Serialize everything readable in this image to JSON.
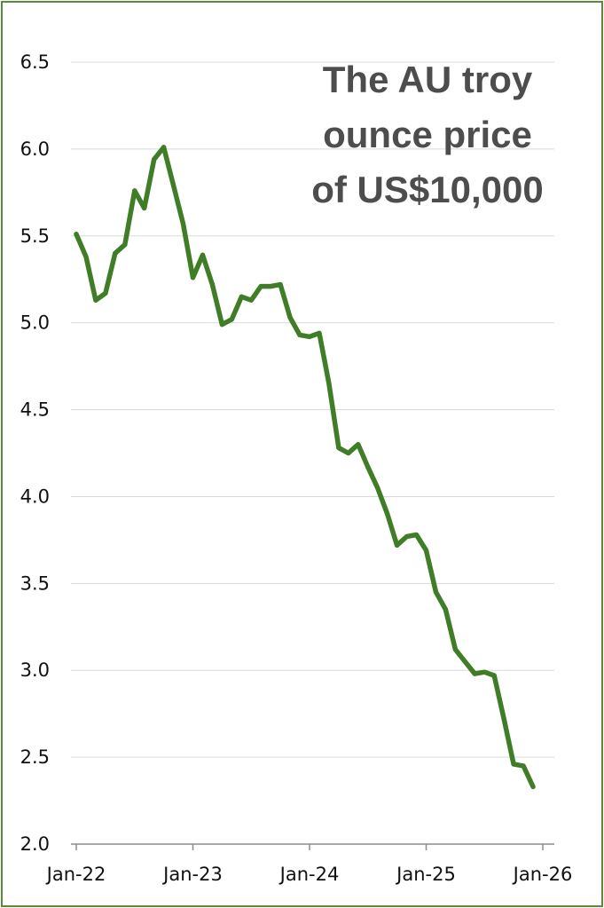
{
  "chart_data": {
    "type": "line",
    "title_lines": [
      "The AU troy",
      "ounce price",
      "of US$10,000"
    ],
    "xlabel": "",
    "ylabel": "",
    "ylim": [
      2.0,
      6.5
    ],
    "y_ticks": [
      "2.0",
      "2.5",
      "3.0",
      "3.5",
      "4.0",
      "4.5",
      "5.0",
      "5.5",
      "6.0",
      "6.5"
    ],
    "x_ticks": [
      {
        "label": "Jan-22",
        "month": 0
      },
      {
        "label": "Jan-23",
        "month": 12
      },
      {
        "label": "Jan-24",
        "month": 24
      },
      {
        "label": "Jan-25",
        "month": 36
      },
      {
        "label": "Jan-26",
        "month": 48
      }
    ],
    "grid": true,
    "legend": "none",
    "series_color": "#3f7d26",
    "series": [
      {
        "x": [
          "Jan-22",
          "Feb-22",
          "Mar-22",
          "Apr-22",
          "May-22",
          "Jun-22",
          "Jul-22",
          "Aug-22",
          "Sep-22",
          "Oct-22",
          "Nov-22",
          "Dec-22",
          "Jan-23",
          "Feb-23",
          "Mar-23",
          "Apr-23",
          "May-23",
          "Jun-23",
          "Jul-23",
          "Aug-23",
          "Sep-23",
          "Oct-23",
          "Nov-23",
          "Dec-23",
          "Jan-24",
          "Feb-24",
          "Mar-24",
          "Apr-24",
          "May-24",
          "Jun-24",
          "Jul-24",
          "Aug-24",
          "Sep-24",
          "Oct-24",
          "Nov-24",
          "Dec-24",
          "Jan-25",
          "Feb-25",
          "Mar-25",
          "Apr-25",
          "May-25",
          "Jun-25",
          "Jul-25",
          "Aug-25",
          "Sep-25",
          "Oct-25",
          "Nov-25",
          "Dec-25"
        ],
        "values": [
          5.51,
          5.38,
          5.13,
          5.17,
          5.4,
          5.45,
          5.76,
          5.66,
          5.94,
          6.01,
          5.79,
          5.57,
          5.26,
          5.39,
          5.22,
          4.99,
          5.02,
          5.15,
          5.13,
          5.21,
          5.21,
          5.22,
          5.03,
          4.93,
          4.92,
          4.94,
          4.65,
          4.28,
          4.25,
          4.3,
          4.17,
          4.05,
          3.9,
          3.72,
          3.77,
          3.78,
          3.69,
          3.45,
          3.35,
          3.12,
          3.05,
          2.98,
          2.99,
          2.97,
          2.72,
          2.46,
          2.45,
          2.33
        ]
      }
    ]
  }
}
